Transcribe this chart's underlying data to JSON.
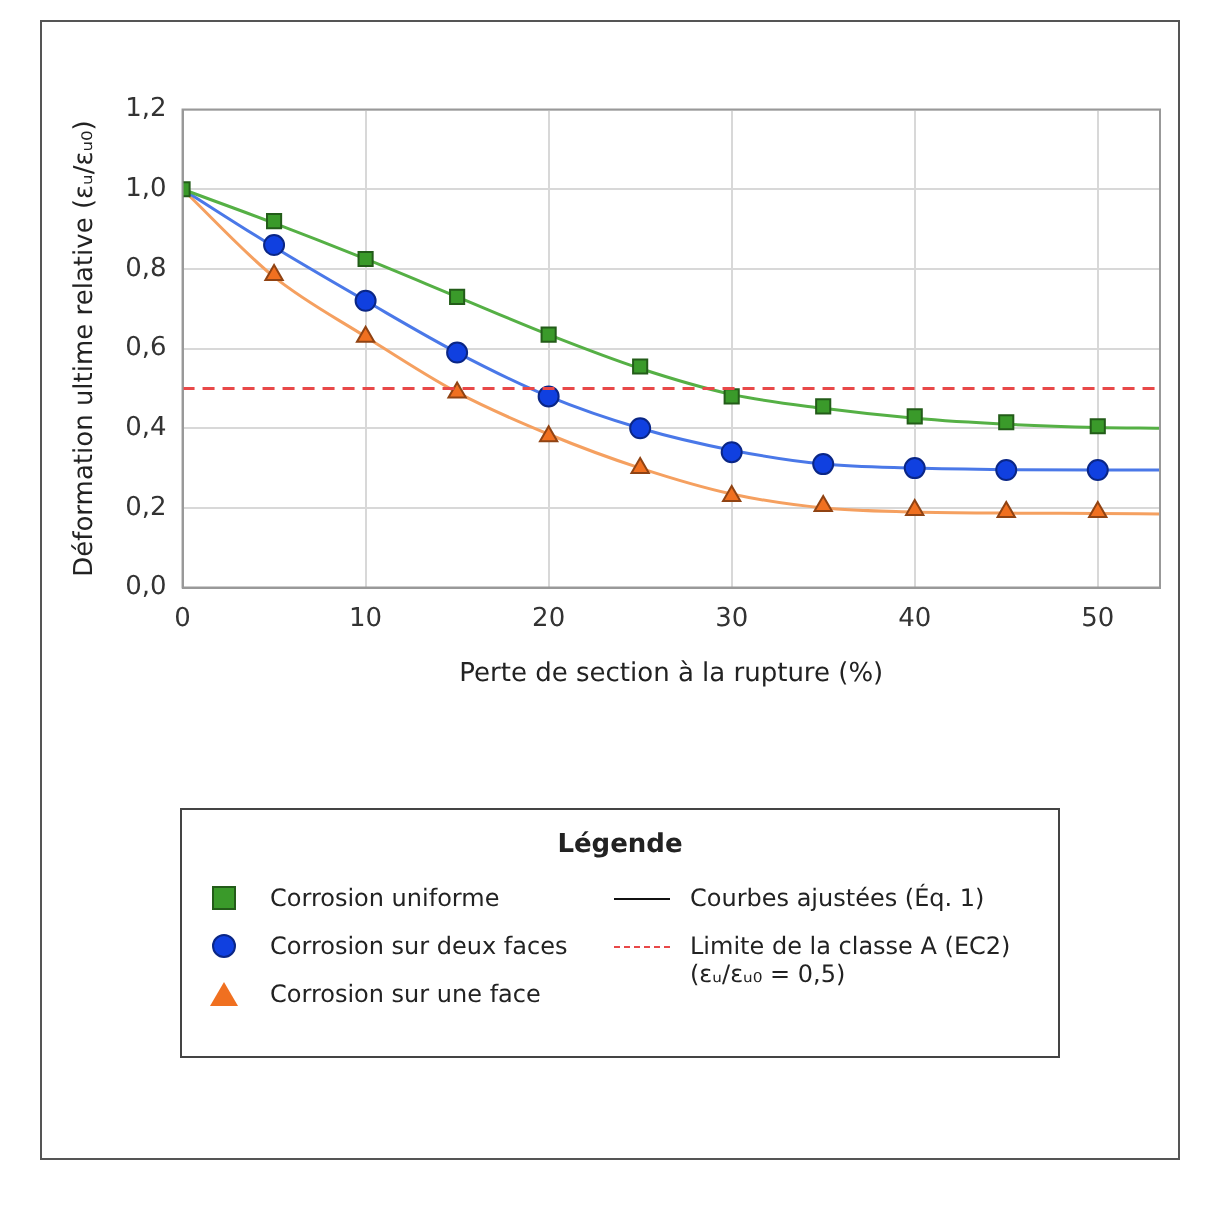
{
  "chart_data": {
    "type": "scatter",
    "xlabel": "Perte de section à la rupture (%)",
    "ylabel": "Déformation ultime relative (εᵤ/εᵤ₀)",
    "legend_title": "Légende",
    "legend": "bottom",
    "grid": true,
    "x": [
      0,
      5,
      10,
      15,
      20,
      25,
      30,
      35,
      40,
      45,
      50
    ],
    "xlim": [
      0,
      53.4
    ],
    "xticks": [
      0,
      10,
      20,
      30,
      40,
      50
    ],
    "ylim": [
      0,
      1.2
    ],
    "yticks": [
      {
        "value": 0,
        "label": "0,0"
      },
      {
        "value": 0.2,
        "label": "0,2"
      },
      {
        "value": 0.4,
        "label": "0,4"
      },
      {
        "value": 0.6,
        "label": "0,6"
      },
      {
        "value": 0.8,
        "label": "0,8"
      },
      {
        "value": 1,
        "label": "1,0"
      },
      {
        "value": 1.2,
        "label": "1,2"
      }
    ],
    "series": [
      {
        "type": "line",
        "marker": "none",
        "color": "#55b045",
        "x": [
          0,
          5,
          10,
          15,
          20,
          25,
          30,
          35,
          40,
          45,
          50,
          53.4
        ],
        "values": [
          1,
          0.915,
          0.825,
          0.73,
          0.635,
          0.55,
          0.485,
          0.45,
          0.425,
          0.41,
          0.402,
          0.4
        ]
      },
      {
        "type": "line",
        "marker": "none",
        "color": "#4a78e8",
        "x": [
          0,
          5,
          10,
          15,
          20,
          25,
          30,
          35,
          40,
          45,
          50,
          53.4
        ],
        "values": [
          1,
          0.855,
          0.72,
          0.59,
          0.48,
          0.4,
          0.345,
          0.31,
          0.3,
          0.296,
          0.295,
          0.295
        ]
      },
      {
        "type": "line",
        "marker": "none",
        "color": "#f5a060",
        "x": [
          0,
          5,
          10,
          15,
          20,
          25,
          30,
          35,
          40,
          45,
          50,
          53.4
        ],
        "values": [
          1,
          0.78,
          0.63,
          0.49,
          0.385,
          0.3,
          0.235,
          0.2,
          0.19,
          0.187,
          0.186,
          0.185
        ]
      },
      {
        "name": "Corrosion uniforme",
        "marker": "square",
        "color": "#3a9a2a",
        "values": [
          1,
          0.92,
          0.825,
          0.73,
          0.635,
          0.555,
          0.48,
          0.455,
          0.43,
          0.415,
          0.405
        ]
      },
      {
        "name": "Corrosion sur deux faces",
        "marker": "circle",
        "color": "#1040e0",
        "values": [
          null,
          0.86,
          0.72,
          0.59,
          0.48,
          0.4,
          0.34,
          0.31,
          0.3,
          0.295,
          0.295
        ]
      },
      {
        "name": "Corrosion sur une face",
        "marker": "triangle",
        "color": "#f07020",
        "values": [
          null,
          0.785,
          0.63,
          0.49,
          0.38,
          0.3,
          0.23,
          0.205,
          0.195,
          0.19,
          0.19
        ]
      }
    ],
    "ref_lines": [
      {
        "axis": "y",
        "value": 0.5,
        "label": "Limite de la classe A (EC2) (εᵤ/εᵤ₀ = 0,5)",
        "color": "#e84848",
        "line_style": "dashed"
      }
    ],
    "annotations": [
      "Courbes ajustées (Éq. 1)"
    ]
  }
}
